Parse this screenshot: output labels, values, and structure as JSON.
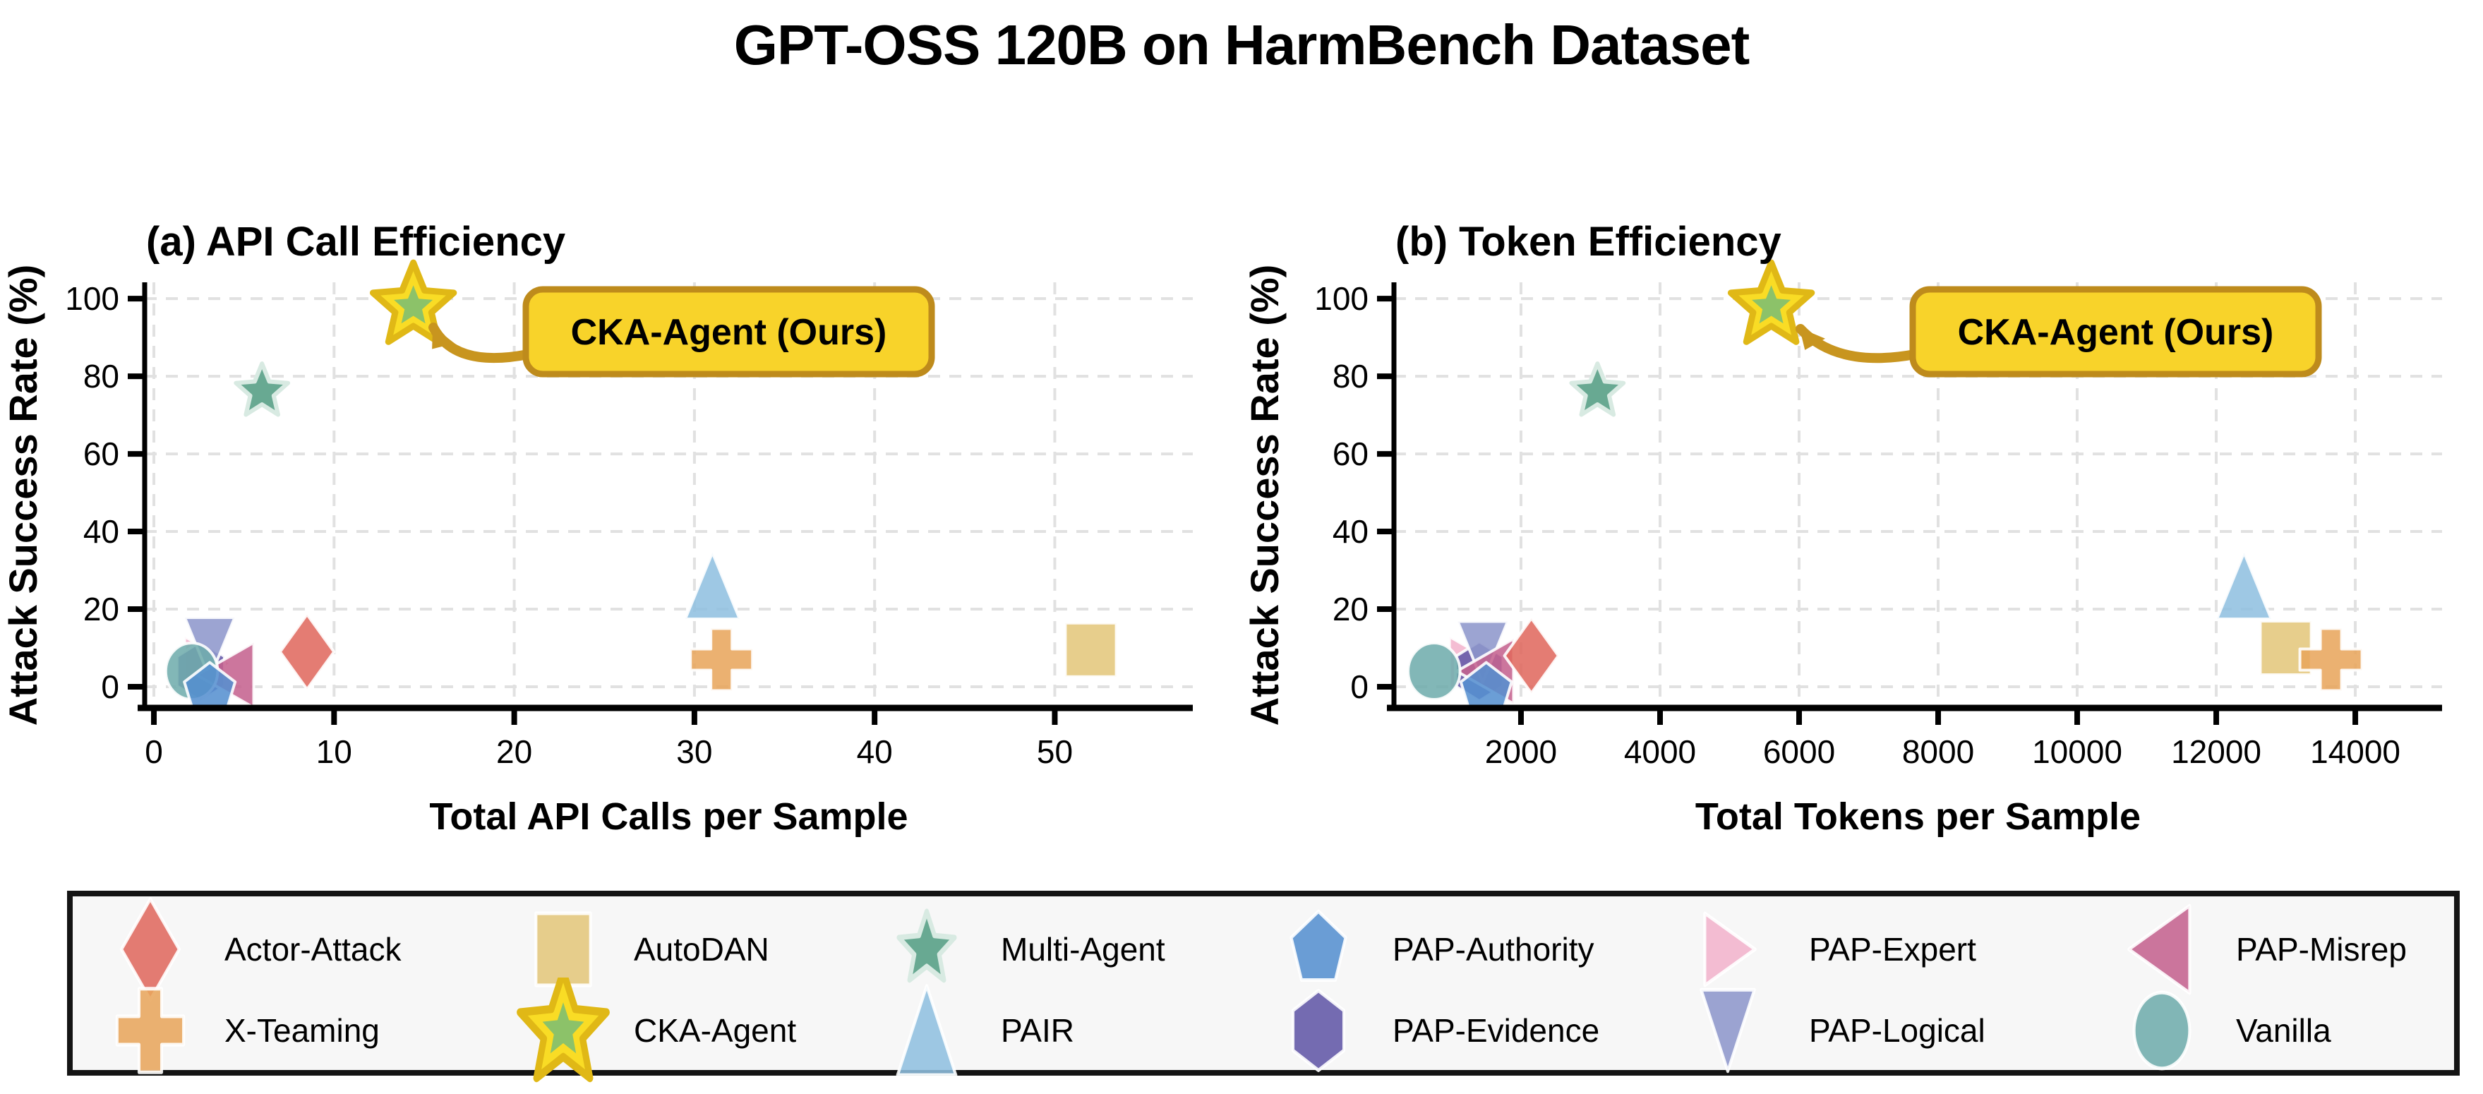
{
  "figure_title": "GPT-OSS 120B on HarmBench Dataset",
  "annotation_label": "CKA-Agent (Ours)",
  "palette": {
    "grid": "#e1e1e1",
    "spine": "#000000",
    "arrow_gold": "#c8951f",
    "annotation_box_fill": "#f8d32a",
    "annotation_box_border": "#be8b1c",
    "legend_background": "#f7f7f7",
    "legend_border": "#141414",
    "cka_inner_star": "#8cc269",
    "cka_star_outline": "#e0b816"
  },
  "methods": [
    {
      "label": "Actor-Attack",
      "shape": "diamond",
      "color": "#e0695e"
    },
    {
      "label": "X-Teaming",
      "shape": "plus",
      "color": "#e8a55c"
    },
    {
      "label": "AutoDAN",
      "shape": "square",
      "color": "#e4c77b"
    },
    {
      "label": "CKA-Agent",
      "shape": "star-highlight",
      "color": "#f9dc25",
      "inner_color": "#8cc269"
    },
    {
      "label": "Multi-Agent",
      "shape": "star",
      "color": "#68a992"
    },
    {
      "label": "PAIR",
      "shape": "triangle-up",
      "color": "#90c0e0"
    },
    {
      "label": "PAP-Authority",
      "shape": "pentagon",
      "color": "#5590d0"
    },
    {
      "label": "PAP-Evidence",
      "shape": "hexagon",
      "color": "#6056a6"
    },
    {
      "label": "PAP-Expert",
      "shape": "triangle-right",
      "color": "#f2b3cd"
    },
    {
      "label": "PAP-Logical",
      "shape": "triangle-down",
      "color": "#8d97cb"
    },
    {
      "label": "PAP-Misrep",
      "shape": "triangle-left",
      "color": "#c4628f"
    },
    {
      "label": "Vanilla",
      "shape": "circle",
      "color": "#6facac"
    }
  ],
  "chart_data": [
    {
      "type": "scatter",
      "title": "(a) API Call Efficiency",
      "xlabel": "Total API Calls per Sample",
      "ylabel": "Attack Success Rate (%)",
      "xlim": [
        -0.51,
        57.66
      ],
      "ylim": [
        -5.45,
        104.2
      ],
      "xticks": [
        0,
        10,
        20,
        30,
        40,
        50
      ],
      "yticks": [
        0,
        20,
        40,
        60,
        80,
        100
      ],
      "grid": true,
      "points": [
        {
          "method": "Actor-Attack",
          "x": 8.5,
          "y": 9
        },
        {
          "method": "X-Teaming",
          "x": 31.5,
          "y": 7
        },
        {
          "method": "AutoDAN",
          "x": 52,
          "y": 9.5
        },
        {
          "method": "CKA-Agent",
          "x": 14.4,
          "y": 98
        },
        {
          "method": "Multi-Agent",
          "x": 6,
          "y": 76
        },
        {
          "method": "PAIR",
          "x": 31,
          "y": 26
        },
        {
          "method": "PAP-Authority",
          "x": 3.1,
          "y": -1
        },
        {
          "method": "PAP-Evidence",
          "x": 2.6,
          "y": 4
        },
        {
          "method": "PAP-Expert",
          "x": 2.9,
          "y": 6
        },
        {
          "method": "PAP-Logical",
          "x": 3.1,
          "y": 10
        },
        {
          "method": "PAP-Misrep",
          "x": 4.1,
          "y": 3
        },
        {
          "method": "Vanilla",
          "x": 2.1,
          "y": 4
        }
      ]
    },
    {
      "type": "scatter",
      "title": "(b) Token Efficiency",
      "xlabel": "Total Tokens per Sample",
      "ylabel": "Attack Success Rate (%)",
      "xlim": [
        173,
        15248
      ],
      "ylim": [
        -5.45,
        104.2
      ],
      "xticks": [
        2000,
        4000,
        6000,
        8000,
        10000,
        12000,
        14000
      ],
      "yticks": [
        0,
        20,
        40,
        60,
        80,
        100
      ],
      "grid": true,
      "points": [
        {
          "method": "Actor-Attack",
          "x": 2150,
          "y": 8
        },
        {
          "method": "X-Teaming",
          "x": 13650,
          "y": 7
        },
        {
          "method": "AutoDAN",
          "x": 13000,
          "y": 10
        },
        {
          "method": "CKA-Agent",
          "x": 5600,
          "y": 98
        },
        {
          "method": "Multi-Agent",
          "x": 3100,
          "y": 76
        },
        {
          "method": "PAIR",
          "x": 12400,
          "y": 26
        },
        {
          "method": "PAP-Authority",
          "x": 1500,
          "y": -1
        },
        {
          "method": "PAP-Evidence",
          "x": 1400,
          "y": 4
        },
        {
          "method": "PAP-Expert",
          "x": 1280,
          "y": 6
        },
        {
          "method": "PAP-Logical",
          "x": 1450,
          "y": 9
        },
        {
          "method": "PAP-Misrep",
          "x": 1520,
          "y": 4
        },
        {
          "method": "Vanilla",
          "x": 750,
          "y": 4
        }
      ]
    }
  ]
}
